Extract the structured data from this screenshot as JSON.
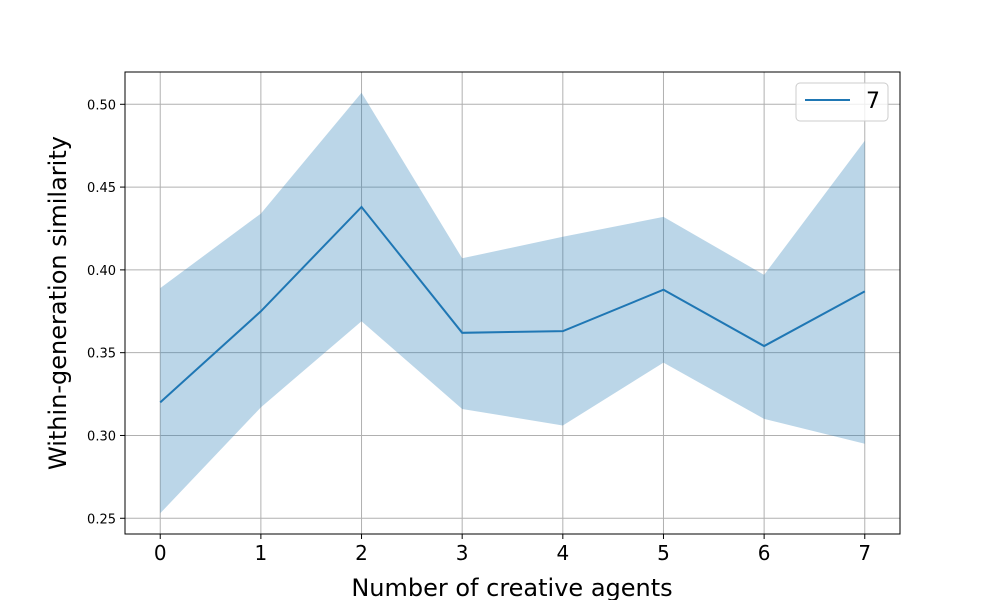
{
  "chart_data": {
    "type": "line",
    "xlabel": "Number of creative agents",
    "ylabel": "Within-generation similarity",
    "x": [
      0,
      1,
      2,
      3,
      4,
      5,
      6,
      7
    ],
    "x_ticks": [
      "0",
      "1",
      "2",
      "3",
      "4",
      "5",
      "6",
      "7"
    ],
    "y_ticks": [
      "0.25",
      "0.30",
      "0.35",
      "0.40",
      "0.45",
      "0.50"
    ],
    "xlim": [
      -0.35,
      7.35
    ],
    "ylim": [
      0.2405,
      0.5195
    ],
    "grid": true,
    "legend_position": "top-right",
    "series": [
      {
        "name": "7",
        "color": "#1f77b4",
        "band_color": "#1f77b4",
        "values": [
          0.32,
          0.375,
          0.438,
          0.362,
          0.363,
          0.388,
          0.354,
          0.387
        ],
        "lower": [
          0.253,
          0.317,
          0.369,
          0.316,
          0.306,
          0.344,
          0.31,
          0.295
        ],
        "upper": [
          0.389,
          0.434,
          0.507,
          0.407,
          0.42,
          0.432,
          0.397,
          0.478
        ]
      }
    ]
  }
}
